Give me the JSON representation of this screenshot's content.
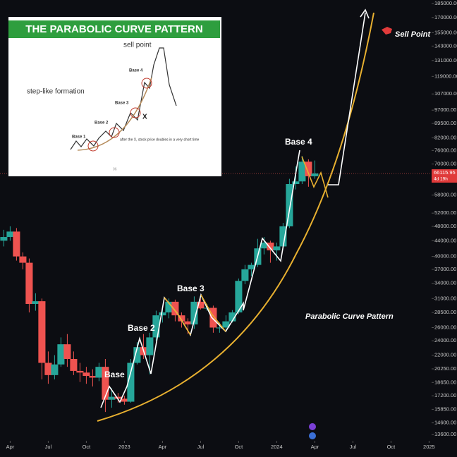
{
  "chart_data": {
    "type": "candlestick",
    "x": [
      2.5,
      3,
      3.5,
      4,
      4.5,
      5,
      5.5,
      6,
      6.5,
      7,
      7.5,
      8,
      8.5,
      9,
      9.5,
      10,
      10.5,
      11,
      11.5,
      12,
      12.5,
      13,
      13.5,
      14,
      14.5,
      15,
      15.5,
      16,
      16.5,
      17,
      17.5,
      18,
      18.5,
      19,
      19.5,
      20,
      20.5,
      21,
      21.5,
      22,
      22.5,
      23,
      23.5,
      24,
      24.5,
      25,
      25.5,
      26,
      26.5,
      27
    ],
    "open": [
      44000,
      45000,
      46500,
      40000,
      38500,
      30000,
      30500,
      21000,
      19500,
      20800,
      23500,
      21500,
      20000,
      19800,
      19400,
      19200,
      20500,
      16800,
      17100,
      16900,
      16600,
      21000,
      23100,
      22000,
      24500,
      28000,
      28500,
      30400,
      28000,
      27000,
      26500,
      30400,
      29200,
      29300,
      26000,
      26000,
      27000,
      28500,
      34500,
      37000,
      38000,
      42000,
      43500,
      41500,
      42500,
      48000,
      62000,
      63000,
      71000,
      65000
    ],
    "high": [
      47000,
      48000,
      47500,
      41000,
      39500,
      32000,
      31000,
      22500,
      22000,
      24500,
      25000,
      22500,
      21000,
      20500,
      20200,
      21000,
      21500,
      18000,
      17500,
      17200,
      21500,
      23800,
      25000,
      25200,
      28800,
      29200,
      31000,
      30800,
      28500,
      27500,
      31400,
      31000,
      30000,
      29700,
      26800,
      28000,
      28900,
      35000,
      38000,
      38500,
      44500,
      45000,
      44000,
      43500,
      49000,
      64000,
      69000,
      73500,
      72000,
      71500
    ],
    "low": [
      42500,
      44000,
      39000,
      37000,
      28500,
      28800,
      19000,
      18500,
      19000,
      20500,
      20500,
      19500,
      18700,
      18500,
      18200,
      18800,
      15600,
      16000,
      16500,
      16300,
      16500,
      20800,
      21500,
      19600,
      24000,
      26800,
      27500,
      27000,
      26000,
      25000,
      25800,
      29000,
      28800,
      25200,
      25200,
      25600,
      26800,
      28200,
      33800,
      35500,
      37500,
      40500,
      38500,
      39000,
      42000,
      47500,
      60000,
      62000,
      61000,
      64000
    ],
    "close": [
      45000,
      46500,
      40000,
      38500,
      30000,
      30500,
      21000,
      19500,
      20800,
      23500,
      21500,
      20000,
      19800,
      19400,
      19200,
      20500,
      16800,
      17100,
      16900,
      16600,
      21000,
      23100,
      22000,
      24500,
      28000,
      28500,
      30400,
      28000,
      27000,
      26500,
      30400,
      29200,
      29300,
      26000,
      26000,
      27000,
      28500,
      34500,
      37000,
      38000,
      42000,
      43500,
      41500,
      42500,
      48000,
      62000,
      63000,
      71000,
      65000,
      66100
    ],
    "up_color": "#26a69a",
    "down_color": "#ef5350",
    "log_scale": true,
    "ylim": [
      13100,
      189000
    ],
    "yticks": [
      {
        "value": 185000,
        "label": "185000.00"
      },
      {
        "value": 170000,
        "label": "170000.00"
      },
      {
        "value": 155000,
        "label": "155000.00"
      },
      {
        "value": 143000,
        "label": "143000.00"
      },
      {
        "value": 131000,
        "label": "131000.00"
      },
      {
        "value": 119000,
        "label": "119000.00"
      },
      {
        "value": 107000,
        "label": "107000.00"
      },
      {
        "value": 97000,
        "label": "97000.00"
      },
      {
        "value": 89500,
        "label": "89500.00"
      },
      {
        "value": 82000,
        "label": "82000.00"
      },
      {
        "value": 76000,
        "label": "76000.00"
      },
      {
        "value": 70000,
        "label": "70000.00"
      },
      {
        "value": 64000,
        "label": "64000.00"
      },
      {
        "value": 58000,
        "label": "58000.00"
      },
      {
        "value": 52000,
        "label": "52000.00"
      },
      {
        "value": 48000,
        "label": "48000.00"
      },
      {
        "value": 44000,
        "label": "44000.00"
      },
      {
        "value": 40000,
        "label": "40000.00"
      },
      {
        "value": 37000,
        "label": "37000.00"
      },
      {
        "value": 34000,
        "label": "34000.00"
      },
      {
        "value": 31000,
        "label": "31000.00"
      },
      {
        "value": 28500,
        "label": "28500.00"
      },
      {
        "value": 26000,
        "label": "26000.00"
      },
      {
        "value": 24000,
        "label": "24000.00"
      },
      {
        "value": 22000,
        "label": "22000.00"
      },
      {
        "value": 20250,
        "label": "20250.00"
      },
      {
        "value": 18650,
        "label": "18650.00"
      },
      {
        "value": 17200,
        "label": "17200.00"
      },
      {
        "value": 15850,
        "label": "15850.00"
      },
      {
        "value": 14600,
        "label": "14600.00"
      },
      {
        "value": 13600,
        "label": "13600.00"
      }
    ],
    "xlim": [
      2.2,
      36.2
    ],
    "xticks": [
      {
        "value": 3,
        "label": "Apr"
      },
      {
        "value": 6,
        "label": "Jul"
      },
      {
        "value": 9,
        "label": "Oct"
      },
      {
        "value": 12,
        "label": "2023"
      },
      {
        "value": 15,
        "label": "Apr"
      },
      {
        "value": 18,
        "label": "Jul"
      },
      {
        "value": 21,
        "label": "Oct"
      },
      {
        "value": 24,
        "label": "2024"
      },
      {
        "value": 27,
        "label": "Apr"
      },
      {
        "value": 30,
        "label": "Jul"
      },
      {
        "value": 33,
        "label": "Oct"
      },
      {
        "value": 36,
        "label": "2025"
      }
    ],
    "current_price": {
      "value": 66115.95,
      "label": "66115.95"
    },
    "countdown": "4d 19h",
    "annotations": {
      "base_1": "Base",
      "base_2": "Base 2",
      "base_3": "Base 3",
      "base_4": "Base 4",
      "pattern": "Parabolic Curve Pattern",
      "sell_point": "Sell Point"
    },
    "inset": {
      "title": "THE PARABOLIC CURVE PATTERN",
      "sell_point": "sell point",
      "formation": "step-like formation",
      "bases": [
        "Base 1",
        "Base 2",
        "Base 3",
        "Base 4"
      ],
      "x_mark": "X",
      "note": "after the X, stock price doubles in a very short time",
      "page": "06"
    }
  }
}
